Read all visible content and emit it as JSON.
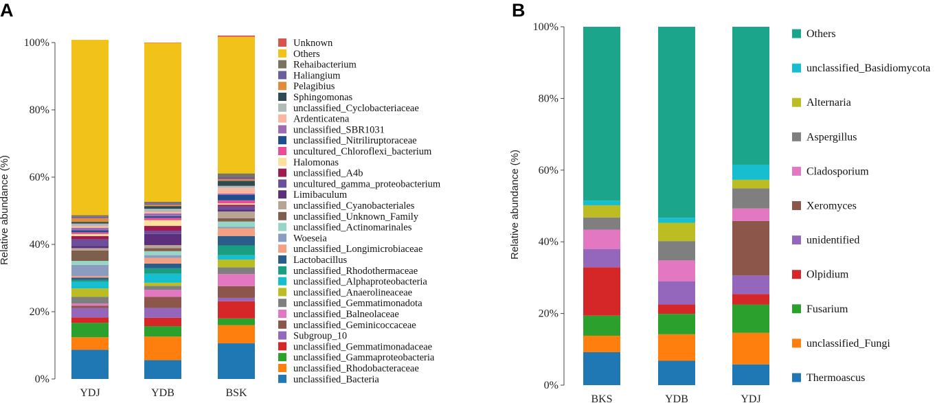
{
  "chart_data": [
    {
      "panel": "A",
      "type": "bar",
      "stacked": true,
      "categories": [
        "YDJ",
        "YDB",
        "BSK"
      ],
      "ylabel": "Relative abundance (%)",
      "xlabel": "",
      "ylim": [
        0,
        100
      ],
      "yticks": [
        "0%",
        "20%",
        "40%",
        "60%",
        "80%",
        "100%"
      ],
      "legend_position": "right",
      "series": [
        {
          "name": "unclassified_Bacteria",
          "color": "#1f77b4",
          "values": [
            8.7,
            5.6,
            10.6
          ]
        },
        {
          "name": "unclassified_Rhodobacteraceae",
          "color": "#ff7f0e",
          "values": [
            3.7,
            7.0,
            5.4
          ]
        },
        {
          "name": "unclassified_Gammaproteobacteria",
          "color": "#2ca02c",
          "values": [
            4.3,
            3.1,
            2.0
          ]
        },
        {
          "name": "unclassified_Gemmatimonadaceae",
          "color": "#d62728",
          "values": [
            1.6,
            2.5,
            5.1
          ]
        },
        {
          "name": "Subgroup_10",
          "color": "#9467bd",
          "values": [
            2.8,
            2.9,
            1.0
          ]
        },
        {
          "name": "unclassified_Geminicoccaceae",
          "color": "#8c564b",
          "values": [
            0.7,
            3.3,
            3.5
          ]
        },
        {
          "name": "unclassified_Balneolaceae",
          "color": "#e377c2",
          "values": [
            0.6,
            2.1,
            3.6
          ]
        },
        {
          "name": "unclassified_Gemmatimonadota",
          "color": "#7f7f7f",
          "values": [
            2.0,
            1.2,
            2.0
          ]
        },
        {
          "name": "unclassified_Anaerolineaceae",
          "color": "#bcbd22",
          "values": [
            2.5,
            0.9,
            2.3
          ]
        },
        {
          "name": "unclassified_Alphaproteobacteria",
          "color": "#17becf",
          "values": [
            2.0,
            2.7,
            1.3
          ]
        },
        {
          "name": "unclassified_Rhodothermaceae",
          "color": "#1a9e82",
          "values": [
            0.6,
            1.6,
            2.9
          ]
        },
        {
          "name": "Lactobacillus",
          "color": "#2b5d8c",
          "values": [
            0.6,
            1.4,
            2.8
          ]
        },
        {
          "name": "unclassified_Longimicrobiaceae",
          "color": "#f3a083",
          "values": [
            0.5,
            1.7,
            2.3
          ]
        },
        {
          "name": "Woeseia",
          "color": "#8a9cc0",
          "values": [
            3.3,
            0.8,
            0.4
          ]
        },
        {
          "name": "unclassified_Actinomarinales",
          "color": "#97d5c6",
          "values": [
            1.2,
            1.2,
            1.6
          ]
        },
        {
          "name": "unclassified_Unknown_Family",
          "color": "#7e5f4d",
          "values": [
            3.1,
            0.9,
            1.0
          ]
        },
        {
          "name": "unclassified_Cyanobacteriales",
          "color": "#b8a493",
          "values": [
            0.7,
            0.9,
            2.0
          ]
        },
        {
          "name": "Limibaculum",
          "color": "#5b2f7c",
          "values": [
            0.6,
            3.3,
            0.5
          ]
        },
        {
          "name": "uncultured_gamma_proteobacterium",
          "color": "#6a4f9c",
          "values": [
            2.0,
            0.9,
            1.0
          ]
        },
        {
          "name": "unclassified_A4b",
          "color": "#9e1a4f",
          "values": [
            1.0,
            1.5,
            0.5
          ]
        },
        {
          "name": "Halomonas",
          "color": "#fde09a",
          "values": [
            0.6,
            1.7,
            0.4
          ]
        },
        {
          "name": "uncultured_Chloroflexi_bacterium",
          "color": "#ec4c96",
          "values": [
            0.5,
            0.7,
            0.9
          ]
        },
        {
          "name": "unclassified_Nitriliruptoraceae",
          "color": "#1c4d8c",
          "values": [
            0.6,
            0.5,
            1.6
          ]
        },
        {
          "name": "unclassified_SBR1031",
          "color": "#9d6bb3",
          "values": [
            0.7,
            0.8,
            0.4
          ]
        },
        {
          "name": "Ardenticatena",
          "color": "#fab6a0",
          "values": [
            0.6,
            0.5,
            1.7
          ]
        },
        {
          "name": "unclassified_Cyclobacteriaceae",
          "color": "#aebbb6",
          "values": [
            0.7,
            0.9,
            0.6
          ]
        },
        {
          "name": "Sphingomonas",
          "color": "#2e4a52",
          "values": [
            0.5,
            0.8,
            1.5
          ]
        },
        {
          "name": "Pelagibius",
          "color": "#e08a3a",
          "values": [
            1.1,
            0.4,
            0.5
          ]
        },
        {
          "name": "Haliangium",
          "color": "#6a5f9d",
          "values": [
            0.4,
            0.4,
            0.6
          ]
        },
        {
          "name": "Rehaibacterium",
          "color": "#7b7262",
          "values": [
            0.5,
            0.5,
            1.1
          ]
        },
        {
          "name": "Others",
          "color": "#f0c21a",
          "values": [
            52.1,
            47.2,
            40.6
          ]
        },
        {
          "name": "Unknown",
          "color": "#d9534f",
          "values": [
            0.0,
            0.1,
            0.4
          ]
        }
      ]
    },
    {
      "panel": "B",
      "type": "bar",
      "stacked": true,
      "categories": [
        "BKS",
        "YDB",
        "YDJ"
      ],
      "ylabel": "Relative abundance (%)",
      "xlabel": "",
      "ylim": [
        0,
        100
      ],
      "yticks": [
        "0%",
        "20%",
        "40%",
        "60%",
        "80%",
        "100%"
      ],
      "legend_position": "right",
      "series": [
        {
          "name": "Thermoascus",
          "color": "#1f77b4",
          "values": [
            9.2,
            6.8,
            5.8
          ]
        },
        {
          "name": "unclassified_Fungi",
          "color": "#ff7f0e",
          "values": [
            4.6,
            7.4,
            8.8
          ]
        },
        {
          "name": "Fusarium",
          "color": "#2ca02c",
          "values": [
            5.6,
            5.7,
            7.9
          ]
        },
        {
          "name": "Olpidium",
          "color": "#d62728",
          "values": [
            13.5,
            2.6,
            2.9
          ]
        },
        {
          "name": "unidentified",
          "color": "#9467bd",
          "values": [
            5.1,
            6.5,
            5.2
          ]
        },
        {
          "name": "Xeromyces",
          "color": "#8c564b",
          "values": [
            0.0,
            0.0,
            15.2
          ]
        },
        {
          "name": "Cladosporium",
          "color": "#e377c2",
          "values": [
            5.4,
            5.8,
            3.5
          ]
        },
        {
          "name": "Aspergillus",
          "color": "#7f7f7f",
          "values": [
            3.4,
            5.4,
            5.6
          ]
        },
        {
          "name": "Alternaria",
          "color": "#bcbd22",
          "values": [
            3.4,
            5.1,
            2.4
          ]
        },
        {
          "name": "unclassified_Basidiomycota",
          "color": "#17becf",
          "values": [
            1.3,
            1.4,
            4.2
          ]
        },
        {
          "name": "Others",
          "color": "#1ba68c",
          "values": [
            48.5,
            53.3,
            38.5
          ]
        }
      ]
    }
  ]
}
